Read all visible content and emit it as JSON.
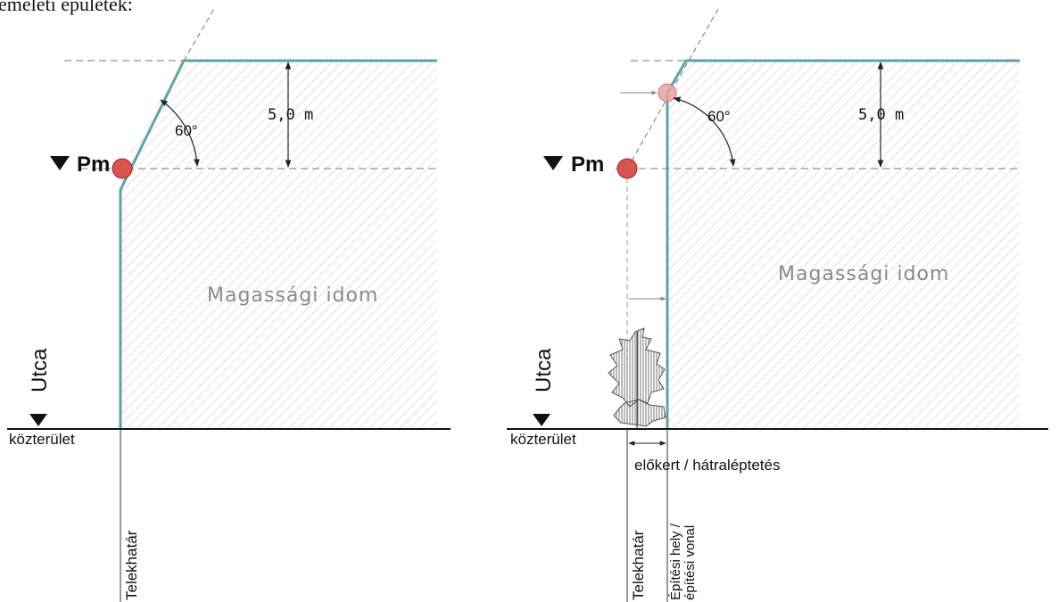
{
  "header_fragment": "emeleti épületek:",
  "colors": {
    "boundary": "#5fa3a8",
    "point": "#d9534f",
    "point_faded": "#e9a3a3",
    "hatch": "#c8c8c8",
    "dash": "#777777",
    "ground": "#111111"
  },
  "left": {
    "pm_label": "Pm",
    "angle_label": "60°",
    "height_label": "5,0 m",
    "volume_label": "Magassági idom",
    "street_label": "Utca",
    "public_label": "közterület",
    "plot_boundary_label": "Telekhatár"
  },
  "right": {
    "pm_label": "Pm",
    "angle_label": "60°",
    "height_label": "5,0 m",
    "volume_label": "Magassági idom",
    "street_label": "Utca",
    "public_label": "közterület",
    "setback_label": "előkert / hátraléptetés",
    "plot_boundary_label": "Telekhatár",
    "building_line_label_1": "Építési hely /",
    "building_line_label_2": "építési vonal"
  }
}
